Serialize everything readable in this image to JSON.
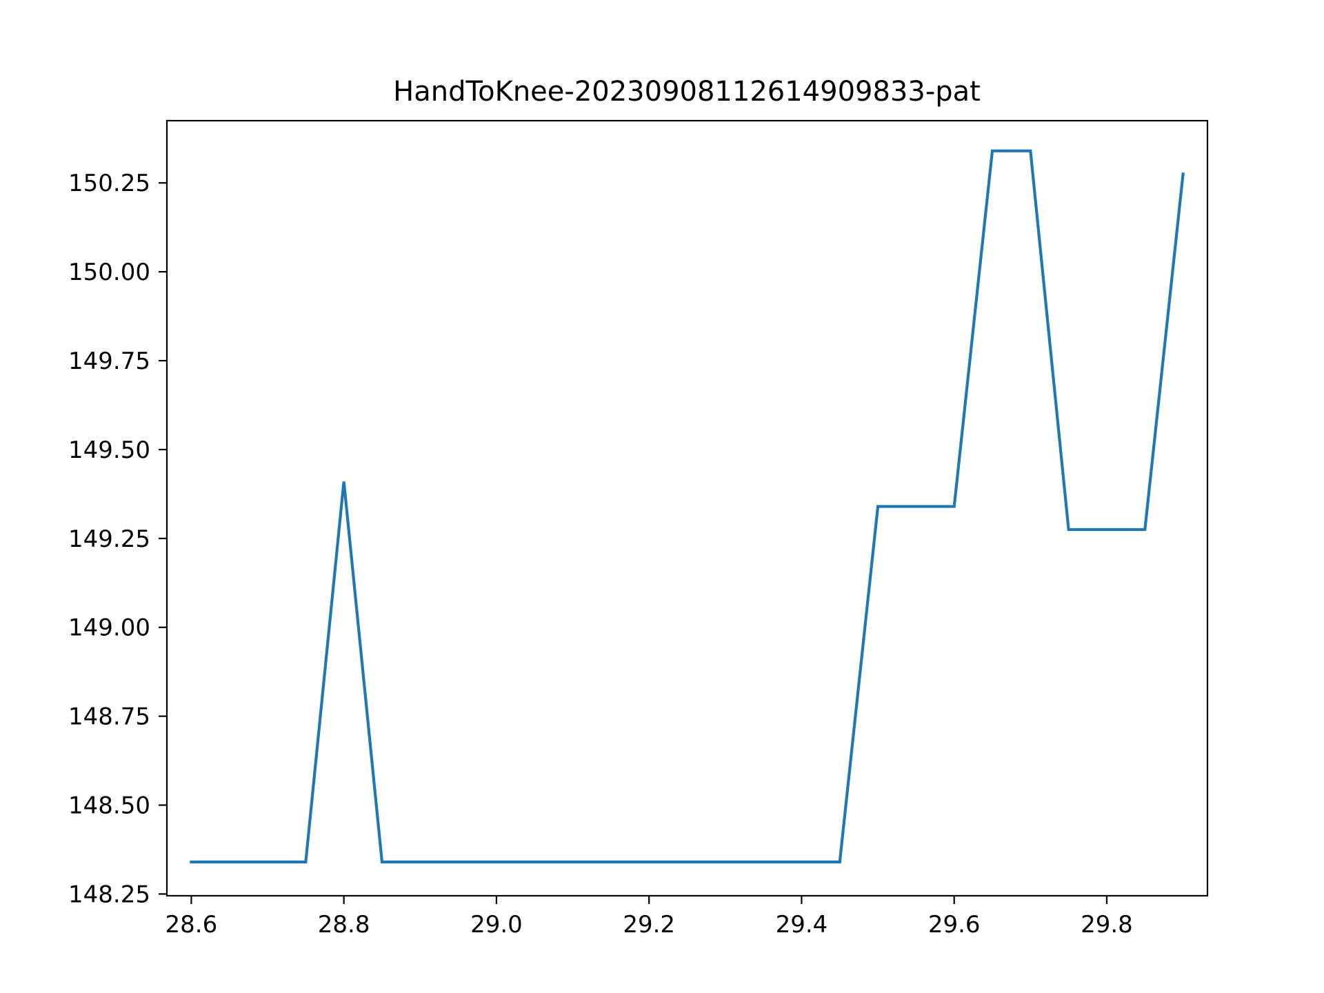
{
  "chart_data": {
    "type": "line",
    "title": "HandToKnee-20230908112614909833-pat",
    "xlabel": "",
    "ylabel": "",
    "xlim": [
      28.568,
      29.932
    ],
    "ylim": [
      148.245,
      150.425
    ],
    "xticks": [
      28.6,
      28.8,
      29.0,
      29.2,
      29.4,
      29.6,
      29.8
    ],
    "xtick_labels": [
      "28.6",
      "28.8",
      "29.0",
      "29.2",
      "29.4",
      "29.6",
      "29.8"
    ],
    "yticks": [
      148.25,
      148.5,
      148.75,
      149.0,
      149.25,
      149.5,
      149.75,
      150.0,
      150.25
    ],
    "ytick_labels": [
      "148.25",
      "148.50",
      "148.75",
      "149.00",
      "149.25",
      "149.50",
      "149.75",
      "150.00",
      "150.25"
    ],
    "grid": false,
    "series": [
      {
        "color": "#1f77b4",
        "x": [
          28.6,
          28.65,
          28.7,
          28.75,
          28.8,
          28.85,
          28.9,
          28.95,
          29.0,
          29.05,
          29.1,
          29.15,
          29.2,
          29.25,
          29.3,
          29.35,
          29.4,
          29.45,
          29.5,
          29.55,
          29.6,
          29.65,
          29.7,
          29.75,
          29.8,
          29.85,
          29.9
        ],
        "y": [
          148.34,
          148.34,
          148.34,
          148.34,
          149.41,
          148.34,
          148.34,
          148.34,
          148.34,
          148.34,
          148.34,
          148.34,
          148.34,
          148.34,
          148.34,
          148.34,
          148.34,
          148.34,
          149.34,
          149.34,
          149.34,
          150.34,
          150.34,
          149.275,
          149.275,
          149.275,
          150.275
        ]
      }
    ]
  }
}
